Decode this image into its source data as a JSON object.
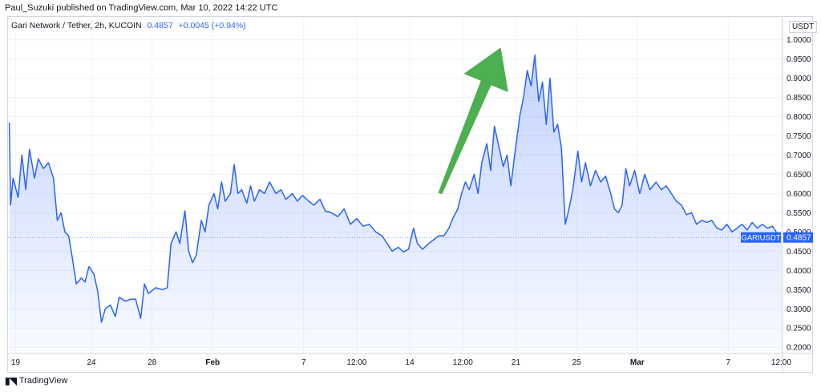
{
  "header": {
    "author": "Paul_Suzuki",
    "published_text": "published on TradingView.com, Mar 10, 2022 14:22 UTC"
  },
  "symbol": {
    "name": "Gari Network / Tether, 2h, KUCOIN",
    "price": "0.4857",
    "change": "+0.0045 (+0.94%)"
  },
  "currency": "USDT",
  "footer": {
    "brand": "TradingView"
  },
  "colors": {
    "line": "#2962ff",
    "fill": "#2962ff",
    "arrow": "#4caf50",
    "grid": "#f0f3fa",
    "price_tag": "#2962ff"
  },
  "price_tag": {
    "symbol": "GARIUSDT",
    "value": "0.4857"
  },
  "chart_data": {
    "type": "area",
    "ylim": [
      0.19,
      1.02
    ],
    "yticks": [
      1.0,
      0.95,
      0.9,
      0.85,
      0.8,
      0.75,
      0.7,
      0.65,
      0.6,
      0.55,
      0.5,
      0.45,
      0.4,
      0.35,
      0.3,
      0.25,
      0.2
    ],
    "ytick_labels": [
      "1.0000",
      "0.9500",
      "0.9000",
      "0.8500",
      "0.8000",
      "0.7500",
      "0.7000",
      "0.6500",
      "0.6000",
      "0.5500",
      "0.5000",
      "0.4500",
      "0.4000",
      "0.3500",
      "0.3000",
      "0.2500",
      "0.2000"
    ],
    "xlim": [
      "2022-01-18T12:00",
      "2022-03-10T14:00"
    ],
    "xticks": [
      {
        "t": "2022-01-19T00:00",
        "label": "19",
        "bold": false
      },
      {
        "t": "2022-01-24T00:00",
        "label": "24",
        "bold": false
      },
      {
        "t": "2022-01-28T00:00",
        "label": "28",
        "bold": false
      },
      {
        "t": "2022-02-01T00:00",
        "label": "Feb",
        "bold": true
      },
      {
        "t": "2022-02-07T00:00",
        "label": "7",
        "bold": false
      },
      {
        "t": "2022-02-10T12:00",
        "label": "12:00",
        "bold": false
      },
      {
        "t": "2022-02-14T00:00",
        "label": "14",
        "bold": false
      },
      {
        "t": "2022-02-17T12:00",
        "label": "12:00",
        "bold": false
      },
      {
        "t": "2022-02-21T00:00",
        "label": "21",
        "bold": false
      },
      {
        "t": "2022-02-25T00:00",
        "label": "25",
        "bold": false
      },
      {
        "t": "2022-03-01T00:00",
        "label": "Mar",
        "bold": true
      },
      {
        "t": "2022-03-07T00:00",
        "label": "7",
        "bold": false
      },
      {
        "t": "2022-03-10T12:00",
        "label": "12:00",
        "bold": false
      }
    ],
    "series": [
      {
        "points": [
          [
            "2022-01-18T14:00",
            0.785
          ],
          [
            "2022-01-18T16:00",
            0.57
          ],
          [
            "2022-01-18T20:00",
            0.64
          ],
          [
            "2022-01-19T04:00",
            0.59
          ],
          [
            "2022-01-19T10:00",
            0.7
          ],
          [
            "2022-01-19T16:00",
            0.61
          ],
          [
            "2022-01-19T22:00",
            0.715
          ],
          [
            "2022-01-20T06:00",
            0.64
          ],
          [
            "2022-01-20T12:00",
            0.69
          ],
          [
            "2022-01-20T20:00",
            0.665
          ],
          [
            "2022-01-21T04:00",
            0.68
          ],
          [
            "2022-01-21T12:00",
            0.64
          ],
          [
            "2022-01-21T18:00",
            0.53
          ],
          [
            "2022-01-22T00:00",
            0.55
          ],
          [
            "2022-01-22T06:00",
            0.5
          ],
          [
            "2022-01-22T12:00",
            0.49
          ],
          [
            "2022-01-22T18:00",
            0.43
          ],
          [
            "2022-01-23T00:00",
            0.365
          ],
          [
            "2022-01-23T08:00",
            0.38
          ],
          [
            "2022-01-23T14:00",
            0.37
          ],
          [
            "2022-01-23T20:00",
            0.41
          ],
          [
            "2022-01-24T04:00",
            0.39
          ],
          [
            "2022-01-24T10:00",
            0.345
          ],
          [
            "2022-01-24T16:00",
            0.265
          ],
          [
            "2022-01-24T22:00",
            0.3
          ],
          [
            "2022-01-25T06:00",
            0.31
          ],
          [
            "2022-01-25T14:00",
            0.28
          ],
          [
            "2022-01-25T20:00",
            0.33
          ],
          [
            "2022-01-26T06:00",
            0.32
          ],
          [
            "2022-01-26T14:00",
            0.325
          ],
          [
            "2022-01-26T22:00",
            0.325
          ],
          [
            "2022-01-27T06:00",
            0.275
          ],
          [
            "2022-01-27T12:00",
            0.365
          ],
          [
            "2022-01-27T18:00",
            0.34
          ],
          [
            "2022-01-28T06:00",
            0.355
          ],
          [
            "2022-01-28T16:00",
            0.35
          ],
          [
            "2022-01-29T00:00",
            0.355
          ],
          [
            "2022-01-29T06:00",
            0.47
          ],
          [
            "2022-01-29T14:00",
            0.5
          ],
          [
            "2022-01-29T20:00",
            0.47
          ],
          [
            "2022-01-30T04:00",
            0.555
          ],
          [
            "2022-01-30T10:00",
            0.45
          ],
          [
            "2022-01-30T16:00",
            0.42
          ],
          [
            "2022-01-30T22:00",
            0.44
          ],
          [
            "2022-01-31T06:00",
            0.53
          ],
          [
            "2022-01-31T12:00",
            0.5
          ],
          [
            "2022-01-31T18:00",
            0.57
          ],
          [
            "2022-02-01T02:00",
            0.6
          ],
          [
            "2022-02-01T08:00",
            0.56
          ],
          [
            "2022-02-01T14:00",
            0.63
          ],
          [
            "2022-02-01T20:00",
            0.58
          ],
          [
            "2022-02-02T04:00",
            0.6
          ],
          [
            "2022-02-02T10:00",
            0.675
          ],
          [
            "2022-02-02T16:00",
            0.6
          ],
          [
            "2022-02-02T22:00",
            0.61
          ],
          [
            "2022-02-03T06:00",
            0.575
          ],
          [
            "2022-02-03T12:00",
            0.62
          ],
          [
            "2022-02-03T18:00",
            0.58
          ],
          [
            "2022-02-04T02:00",
            0.61
          ],
          [
            "2022-02-04T10:00",
            0.6
          ],
          [
            "2022-02-04T18:00",
            0.63
          ],
          [
            "2022-02-05T04:00",
            0.6
          ],
          [
            "2022-02-05T12:00",
            0.61
          ],
          [
            "2022-02-05T20:00",
            0.585
          ],
          [
            "2022-02-06T06:00",
            0.6
          ],
          [
            "2022-02-06T14:00",
            0.58
          ],
          [
            "2022-02-06T22:00",
            0.595
          ],
          [
            "2022-02-07T08:00",
            0.58
          ],
          [
            "2022-02-07T16:00",
            0.57
          ],
          [
            "2022-02-08T02:00",
            0.585
          ],
          [
            "2022-02-08T10:00",
            0.555
          ],
          [
            "2022-02-08T20:00",
            0.55
          ],
          [
            "2022-02-09T06:00",
            0.54
          ],
          [
            "2022-02-09T16:00",
            0.56
          ],
          [
            "2022-02-10T02:00",
            0.52
          ],
          [
            "2022-02-10T12:00",
            0.535
          ],
          [
            "2022-02-10T22:00",
            0.515
          ],
          [
            "2022-02-11T08:00",
            0.52
          ],
          [
            "2022-02-11T18:00",
            0.5
          ],
          [
            "2022-02-12T04:00",
            0.49
          ],
          [
            "2022-02-12T12:00",
            0.47
          ],
          [
            "2022-02-12T20:00",
            0.45
          ],
          [
            "2022-02-13T06:00",
            0.46
          ],
          [
            "2022-02-13T14:00",
            0.448
          ],
          [
            "2022-02-13T22:00",
            0.455
          ],
          [
            "2022-02-14T06:00",
            0.51
          ],
          [
            "2022-02-14T12:00",
            0.47
          ],
          [
            "2022-02-14T20:00",
            0.455
          ],
          [
            "2022-02-15T06:00",
            0.47
          ],
          [
            "2022-02-15T14:00",
            0.48
          ],
          [
            "2022-02-15T22:00",
            0.49
          ],
          [
            "2022-02-16T06:00",
            0.49
          ],
          [
            "2022-02-16T14:00",
            0.51
          ],
          [
            "2022-02-16T20:00",
            0.535
          ],
          [
            "2022-02-17T04:00",
            0.56
          ],
          [
            "2022-02-17T10:00",
            0.6
          ],
          [
            "2022-02-17T16:00",
            0.63
          ],
          [
            "2022-02-17T22:00",
            0.61
          ],
          [
            "2022-02-18T06:00",
            0.65
          ],
          [
            "2022-02-18T12:00",
            0.6
          ],
          [
            "2022-02-18T18:00",
            0.68
          ],
          [
            "2022-02-19T02:00",
            0.73
          ],
          [
            "2022-02-19T08:00",
            0.66
          ],
          [
            "2022-02-19T14:00",
            0.775
          ],
          [
            "2022-02-19T20:00",
            0.73
          ],
          [
            "2022-02-20T04:00",
            0.67
          ],
          [
            "2022-02-20T10:00",
            0.7
          ],
          [
            "2022-02-20T16:00",
            0.62
          ],
          [
            "2022-02-20T22:00",
            0.7
          ],
          [
            "2022-02-21T06:00",
            0.8
          ],
          [
            "2022-02-21T12:00",
            0.85
          ],
          [
            "2022-02-21T18:00",
            0.92
          ],
          [
            "2022-02-22T00:00",
            0.88
          ],
          [
            "2022-02-22T06:00",
            0.96
          ],
          [
            "2022-02-22T12:00",
            0.84
          ],
          [
            "2022-02-22T18:00",
            0.89
          ],
          [
            "2022-02-23T00:00",
            0.78
          ],
          [
            "2022-02-23T06:00",
            0.9
          ],
          [
            "2022-02-23T12:00",
            0.76
          ],
          [
            "2022-02-23T18:00",
            0.78
          ],
          [
            "2022-02-24T00:00",
            0.72
          ],
          [
            "2022-02-24T06:00",
            0.52
          ],
          [
            "2022-02-24T12:00",
            0.56
          ],
          [
            "2022-02-24T18:00",
            0.61
          ],
          [
            "2022-02-25T02:00",
            0.71
          ],
          [
            "2022-02-25T08:00",
            0.63
          ],
          [
            "2022-02-25T14:00",
            0.68
          ],
          [
            "2022-02-25T22:00",
            0.62
          ],
          [
            "2022-02-26T06:00",
            0.66
          ],
          [
            "2022-02-26T14:00",
            0.63
          ],
          [
            "2022-02-26T22:00",
            0.645
          ],
          [
            "2022-02-27T06:00",
            0.6
          ],
          [
            "2022-02-27T12:00",
            0.56
          ],
          [
            "2022-02-27T18:00",
            0.55
          ],
          [
            "2022-02-28T00:00",
            0.57
          ],
          [
            "2022-02-28T06:00",
            0.665
          ],
          [
            "2022-02-28T12:00",
            0.62
          ],
          [
            "2022-02-28T20:00",
            0.66
          ],
          [
            "2022-03-01T04:00",
            0.6
          ],
          [
            "2022-03-01T12:00",
            0.65
          ],
          [
            "2022-03-01T20:00",
            0.61
          ],
          [
            "2022-03-02T06:00",
            0.63
          ],
          [
            "2022-03-02T14:00",
            0.61
          ],
          [
            "2022-03-02T22:00",
            0.62
          ],
          [
            "2022-03-03T06:00",
            0.6
          ],
          [
            "2022-03-03T14:00",
            0.58
          ],
          [
            "2022-03-03T22:00",
            0.57
          ],
          [
            "2022-03-04T06:00",
            0.545
          ],
          [
            "2022-03-04T14:00",
            0.55
          ],
          [
            "2022-03-04T22:00",
            0.52
          ],
          [
            "2022-03-05T06:00",
            0.53
          ],
          [
            "2022-03-05T14:00",
            0.525
          ],
          [
            "2022-03-05T22:00",
            0.53
          ],
          [
            "2022-03-06T06:00",
            0.51
          ],
          [
            "2022-03-06T14:00",
            0.505
          ],
          [
            "2022-03-06T22:00",
            0.52
          ],
          [
            "2022-03-07T06:00",
            0.5
          ],
          [
            "2022-03-07T14:00",
            0.51
          ],
          [
            "2022-03-07T22:00",
            0.52
          ],
          [
            "2022-03-08T06:00",
            0.505
          ],
          [
            "2022-03-08T14:00",
            0.525
          ],
          [
            "2022-03-08T22:00",
            0.51
          ],
          [
            "2022-03-09T06:00",
            0.52
          ],
          [
            "2022-03-09T14:00",
            0.51
          ],
          [
            "2022-03-09T22:00",
            0.515
          ],
          [
            "2022-03-10T06:00",
            0.495
          ],
          [
            "2022-03-10T12:00",
            0.4857
          ]
        ]
      }
    ],
    "annotations": [
      {
        "type": "arrow",
        "direction": "up-right",
        "from": [
          "2022-02-16T00:00",
          0.6
        ],
        "to": [
          "2022-02-20T00:00",
          0.98
        ]
      }
    ],
    "grid": true,
    "legend": "none"
  }
}
